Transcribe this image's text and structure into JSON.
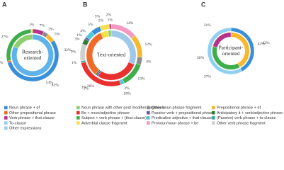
{
  "chart_data": {
    "type": "nested-donut",
    "panels": [
      {
        "letter": "A",
        "center_label": [
          "Research-",
          "oriented"
        ],
        "outer": {
          "values": [
            7,
            3,
            5,
            54,
            1,
            27,
            1
          ],
          "value_labels": [
            "7%",
            "3%",
            "5%",
            "54%",
            "1%",
            "27%",
            "1%"
          ],
          "colors": [
            "#b5338a",
            "#8c8c8c",
            "#f5b82e",
            "#3a8fd9",
            "#f06a2a",
            "#3fae4a",
            "#f7e04a"
          ]
        },
        "inner": {
          "values": [
            82,
            18
          ],
          "value_labels": [
            "82%",
            null
          ],
          "colors": [
            "#5fb2ea",
            "#8ccf6e"
          ]
        }
      },
      {
        "letter": "B",
        "center_label": [
          "Text-oriented"
        ],
        "outer": {
          "values": [
            14,
            12,
            4,
            13,
            2,
            26,
            1,
            9,
            3,
            1,
            4,
            5,
            5,
            1
          ],
          "value_labels": [
            "14%",
            "12%",
            "4%",
            "13%",
            "2%",
            "26%",
            "1%",
            "9%",
            "3%",
            "1%",
            "4%",
            "5%",
            "5%",
            "1%"
          ],
          "colors": [
            "#f29ac2",
            "#f5b82e",
            "#8c8c8c",
            "#3fae4a",
            "#4fc8d8",
            "#e8312f",
            "#3fa8a0",
            "#cfcfcf",
            "#2f7d3a",
            "#6a4fb3",
            "#4fc8d8",
            "#3a8fd9",
            "#f7e04a",
            "#b5338a"
          ]
        },
        "inner": {
          "values": [
            31,
            28,
            1,
            1,
            32,
            5,
            2
          ],
          "value_labels": [
            null,
            "28%",
            "1%",
            "1%",
            "32%",
            "5%",
            "2%"
          ],
          "colors": [
            "#9ec9e8",
            "#e8312f",
            "#6a4fb3",
            "#2f7d3a",
            "#f06a2a",
            "#f7e04a",
            "#8ccf6e"
          ]
        }
      },
      {
        "letter": "C",
        "center_label": [
          "Participant-",
          "oriented"
        ],
        "outer": {
          "values": [
            42,
            58
          ],
          "value_labels": [
            "42%",
            "58%"
          ],
          "colors": [
            "#3a8fd9",
            "#8fd0f0"
          ]
        },
        "inner": {
          "values": [
            42,
            37,
            21
          ],
          "value_labels": [
            "42%",
            "37%",
            "21%"
          ],
          "colors": [
            "#f5b82e",
            "#3fae4a",
            "#b5338a"
          ]
        }
      }
    ],
    "legend": [
      {
        "name": "Noun phrase + of",
        "color": "#3a8fd9"
      },
      {
        "name": "Other prepositional phrase",
        "color": "#f06a2a"
      },
      {
        "name": "Verb phrase + that-clause",
        "color": "#b5338a"
      },
      {
        "name": "To-clause",
        "color": "#8fd0f0"
      },
      {
        "name": "Other expressions",
        "color": "#9ec9e8"
      },
      {
        "name": "Noun phrase with other post modifier fragments",
        "color": "#8ccf6e"
      },
      {
        "name": "Be + noun/adjective phrase",
        "color": "#e8312f"
      },
      {
        "name": "Subject + verb phrase + (that-clause)",
        "color": "#3fae4a"
      },
      {
        "name": "Adverbial clause fragment",
        "color": "#f7e04a"
      },
      {
        "name": "Other noun phrase fragment",
        "color": "#8c8c8c"
      },
      {
        "name": "Passive verb + prepositional phrase",
        "color": "#6a4fb3"
      },
      {
        "name": "Predicative adjective + that-clause",
        "color": "#4fc8d8"
      },
      {
        "name": "Pronoun/noun phrase + be",
        "color": "#f29ac2"
      },
      {
        "name": "Prepositional phrase + of",
        "color": "#f5b82e"
      },
      {
        "name": "Anticipatory it + verb/adjective phrase",
        "color": "#2f7d3a"
      },
      {
        "name": "(Passive) verb phrase + to-clause",
        "color": "#3fa8a0"
      },
      {
        "name": "Other verb phrase fragment",
        "color": "#cfcfcf"
      }
    ]
  }
}
